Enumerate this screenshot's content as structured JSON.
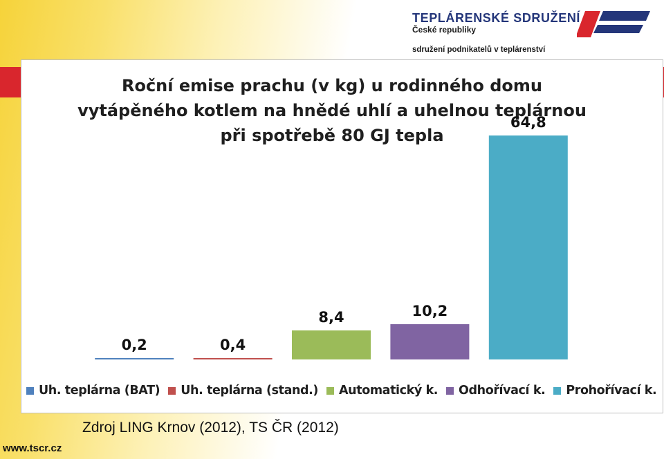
{
  "header": {
    "org_name": "TEPLÁRENSKÉ  SDRUŽENÍ",
    "org_country": "České republiky",
    "org_tagline": "sdružení podnikatelů v teplárenství",
    "brand_colors": {
      "navy": "#24367a",
      "red": "#d9262d"
    }
  },
  "footer": {
    "source": "Zdroj LING Krnov (2012), TS ČR (2012)",
    "website": "www.tscr.cz"
  },
  "chart_data": {
    "type": "bar",
    "title_lines": [
      "Roční emise prachu (v kg) u rodinného domu",
      "vytápěného kotlem na hnědé uhlí a uhelnou  teplárnou",
      "při spotřebě 80 GJ tepla"
    ],
    "categories": [
      "Uh. teplárna (BAT)",
      "Uh. teplárna (stand.)",
      "Automatický k.",
      "Odhořívací k.",
      "Prohořívací k."
    ],
    "values": [
      0.2,
      0.4,
      8.4,
      10.2,
      64.8
    ],
    "value_labels": [
      "0,2",
      "0,4",
      "8,4",
      "10,2",
      "64,8"
    ],
    "colors": [
      "#4f81bd",
      "#c0504d",
      "#9bbb59",
      "#8064a2",
      "#4bacc6"
    ],
    "ylim": [
      0,
      70
    ],
    "grid": false,
    "axes_visible": false,
    "legend_position": "bottom"
  }
}
